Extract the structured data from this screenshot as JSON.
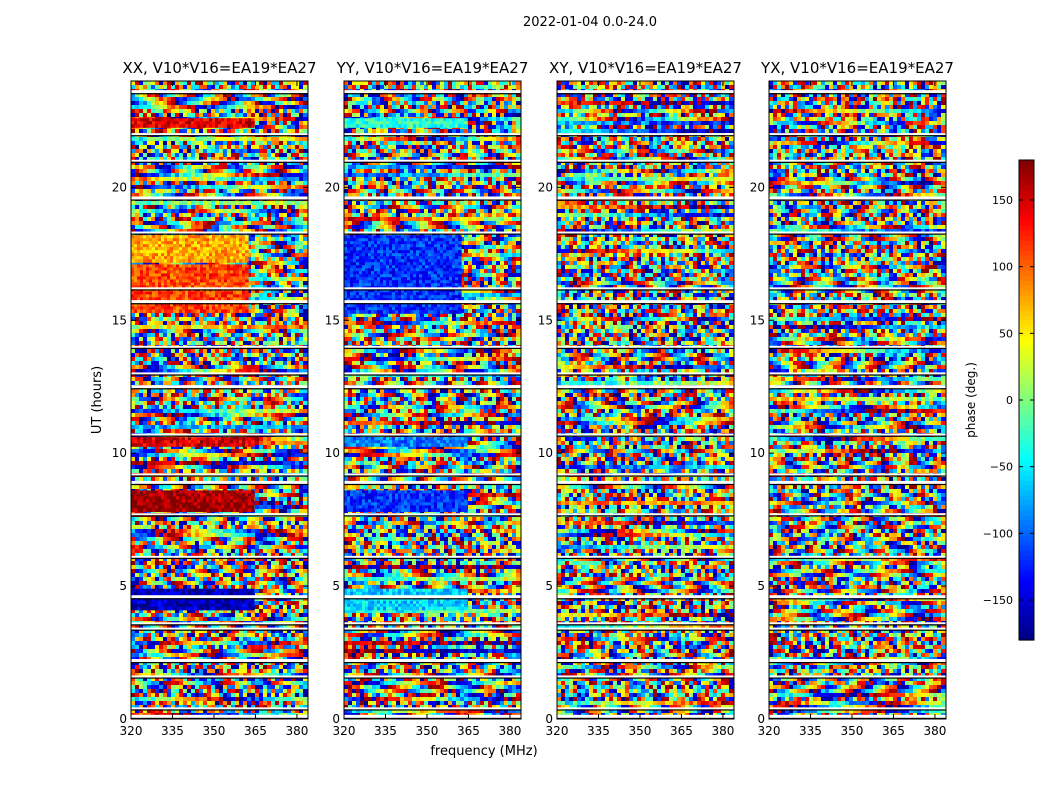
{
  "figure": {
    "title": "2022-01-04 0.0-24.0",
    "xlabel": "frequency (MHz)",
    "ylabel": "UT (hours)"
  },
  "chart_data": {
    "type": "heatmap",
    "panels": [
      {
        "title": "XX, V10*V16=EA19*EA27",
        "xlim": [
          320,
          384
        ],
        "ylim": [
          0,
          24
        ],
        "xticks": [
          320,
          335,
          350,
          365,
          380
        ],
        "yticks": [
          0,
          5,
          10,
          15,
          20
        ],
        "features": [
          {
            "ut": [
              17.2,
              18.2
            ],
            "freq": [
              320,
              362
            ],
            "phase": 75
          },
          {
            "ut": [
              15.3,
              17.1
            ],
            "freq": [
              320,
              362
            ],
            "phase": 110
          },
          {
            "ut": [
              10.3,
              10.6
            ],
            "freq": [
              320,
              364
            ],
            "phase": 150
          },
          {
            "ut": [
              7.9,
              8.6
            ],
            "freq": [
              320,
              364
            ],
            "phase": 170
          },
          {
            "ut": [
              4.2,
              4.9
            ],
            "freq": [
              320,
              364
            ],
            "phase": -160
          },
          {
            "ut": [
              22.3,
              22.6
            ],
            "freq": [
              320,
              364
            ],
            "phase": 150
          }
        ]
      },
      {
        "title": "YY, V10*V16=EA19*EA27",
        "xlim": [
          320,
          384
        ],
        "ylim": [
          0,
          24
        ],
        "xticks": [
          320,
          335,
          350,
          365,
          380
        ],
        "yticks": [
          0,
          5,
          10,
          15,
          20
        ],
        "features": [
          {
            "ut": [
              15.3,
              18.2
            ],
            "freq": [
              320,
              362
            ],
            "phase": -120
          },
          {
            "ut": [
              10.3,
              10.6
            ],
            "freq": [
              320,
              364
            ],
            "phase": -90
          },
          {
            "ut": [
              7.9,
              8.6
            ],
            "freq": [
              320,
              364
            ],
            "phase": -120
          },
          {
            "ut": [
              4.2,
              4.9
            ],
            "freq": [
              320,
              364
            ],
            "phase": -60
          },
          {
            "ut": [
              22.3,
              22.6
            ],
            "freq": [
              320,
              364
            ],
            "phase": -30
          }
        ]
      },
      {
        "title": "XY, V10*V16=EA19*EA27",
        "xlim": [
          320,
          384
        ],
        "ylim": [
          0,
          24
        ],
        "xticks": [
          320,
          335,
          350,
          365,
          380
        ],
        "yticks": [
          0,
          5,
          10,
          15,
          20
        ],
        "features": []
      },
      {
        "title": "YX, V10*V16=EA19*EA27",
        "xlim": [
          320,
          384
        ],
        "ylim": [
          0,
          24
        ],
        "xticks": [
          320,
          335,
          350,
          365,
          380
        ],
        "yticks": [
          0,
          5,
          10,
          15,
          20
        ],
        "features": []
      }
    ],
    "colorbar": {
      "label": "phase (deg.)",
      "range": [
        -180,
        180
      ],
      "ticks": [
        -150,
        -100,
        -50,
        0,
        50,
        100,
        150
      ],
      "tick_labels": [
        "−150",
        "−100",
        "−50",
        "0",
        "50",
        "100",
        "150"
      ],
      "colormap": "jet"
    },
    "flagged_ut_gaps": [
      23.6,
      22.0,
      21.0,
      19.6,
      18.3,
      16.2,
      15.7,
      14.0,
      13.0,
      12.5,
      10.7,
      9.2,
      8.9,
      7.7,
      6.1,
      4.6,
      3.6,
      3.4,
      2.2,
      1.6,
      0.4,
      0.1
    ]
  }
}
